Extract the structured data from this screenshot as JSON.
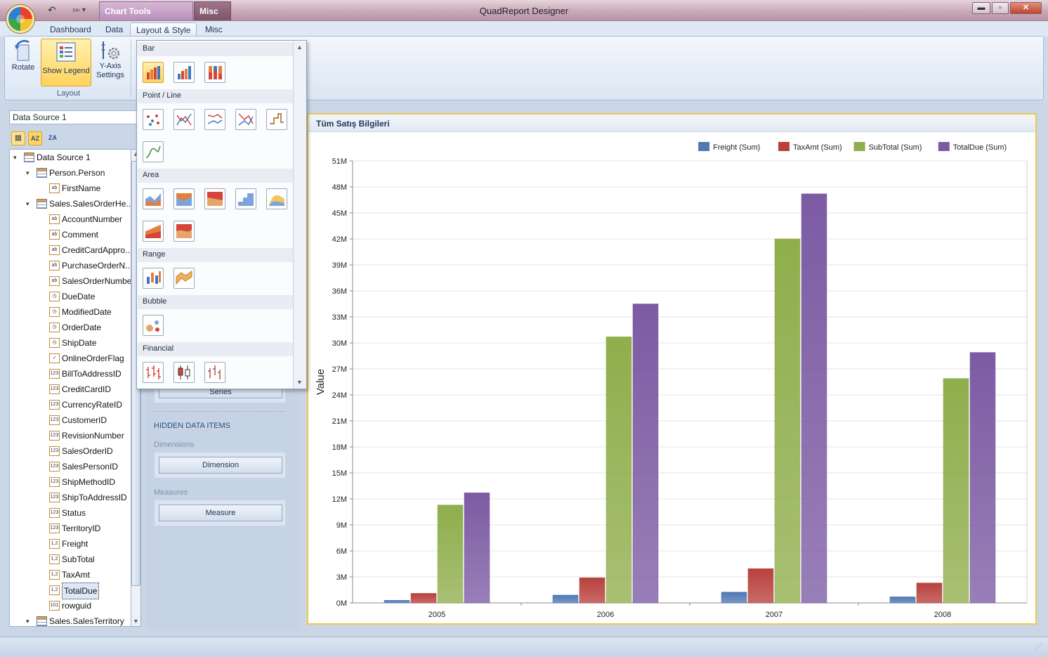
{
  "window": {
    "title": "QuadReport Designer",
    "context_tab_chart": "Chart Tools",
    "context_tab_misc": "Misc"
  },
  "ribbon": {
    "tabs": [
      "Dashboard",
      "Data",
      "Layout & Style",
      "Misc"
    ],
    "active_tab": "Layout & Style",
    "buttons": {
      "rotate": "Rotate",
      "show_legend": "Show Legend",
      "y_axis_line1": "Y-Axis",
      "y_axis_line2": "Settings"
    },
    "group_label": "Layout"
  },
  "data_source": {
    "combo_value": "Data Source 1",
    "tree": [
      {
        "label": "Data Source 1",
        "kind": "table",
        "level": 0,
        "expanded": true
      },
      {
        "label": "Person.Person",
        "kind": "table",
        "level": 1,
        "expanded": true
      },
      {
        "label": "FirstName",
        "kind": "text",
        "level": 2
      },
      {
        "label": "Sales.SalesOrderHe...",
        "kind": "table",
        "level": 1,
        "expanded": true
      },
      {
        "label": "AccountNumber",
        "kind": "text",
        "level": 2
      },
      {
        "label": "Comment",
        "kind": "text",
        "level": 2
      },
      {
        "label": "CreditCardAppro...",
        "kind": "text",
        "level": 2
      },
      {
        "label": "PurchaseOrderN...",
        "kind": "text",
        "level": 2
      },
      {
        "label": "SalesOrderNumber",
        "kind": "text",
        "level": 2
      },
      {
        "label": "DueDate",
        "kind": "date",
        "level": 2
      },
      {
        "label": "ModifiedDate",
        "kind": "date",
        "level": 2
      },
      {
        "label": "OrderDate",
        "kind": "date",
        "level": 2
      },
      {
        "label": "ShipDate",
        "kind": "date",
        "level": 2
      },
      {
        "label": "OnlineOrderFlag",
        "kind": "bool",
        "level": 2
      },
      {
        "label": "BillToAddressID",
        "kind": "int",
        "level": 2
      },
      {
        "label": "CreditCardID",
        "kind": "int",
        "level": 2
      },
      {
        "label": "CurrencyRateID",
        "kind": "int",
        "level": 2
      },
      {
        "label": "CustomerID",
        "kind": "int",
        "level": 2
      },
      {
        "label": "RevisionNumber",
        "kind": "int",
        "level": 2
      },
      {
        "label": "SalesOrderID",
        "kind": "int",
        "level": 2
      },
      {
        "label": "SalesPersonID",
        "kind": "int",
        "level": 2
      },
      {
        "label": "ShipMethodID",
        "kind": "int",
        "level": 2
      },
      {
        "label": "ShipToAddressID",
        "kind": "int",
        "level": 2
      },
      {
        "label": "Status",
        "kind": "int",
        "level": 2
      },
      {
        "label": "TerritoryID",
        "kind": "int",
        "level": 2
      },
      {
        "label": "Freight",
        "kind": "decimal",
        "level": 2
      },
      {
        "label": "SubTotal",
        "kind": "decimal",
        "level": 2
      },
      {
        "label": "TaxAmt",
        "kind": "decimal",
        "level": 2
      },
      {
        "label": "TotalDue",
        "kind": "decimal",
        "level": 2,
        "selected": true
      },
      {
        "label": "rowguid",
        "kind": "guid",
        "level": 2
      },
      {
        "label": "Sales.SalesTerritory",
        "kind": "table",
        "level": 1,
        "expanded": true
      }
    ]
  },
  "mid_panel": {
    "series_button": "Series",
    "hidden_heading": "HIDDEN DATA ITEMS",
    "dimensions_label": "Dimensions",
    "dimension_button": "Dimension",
    "measures_label": "Measures",
    "measure_button": "Measure"
  },
  "gallery": {
    "categories": [
      "Bar",
      "Point / Line",
      "Area",
      "Range",
      "Bubble",
      "Financial"
    ]
  },
  "chart_panel": {
    "title": "Tüm Satış Bilgileri"
  },
  "chart_data": {
    "type": "bar",
    "title": "",
    "xlabel": "",
    "ylabel": "Value",
    "categories": [
      "2005",
      "2006",
      "2007",
      "2008"
    ],
    "ylim": [
      0,
      51000000
    ],
    "yticks": [
      "0M",
      "3M",
      "6M",
      "9M",
      "12M",
      "15M",
      "18M",
      "21M",
      "24M",
      "27M",
      "30M",
      "33M",
      "36M",
      "39M",
      "42M",
      "45M",
      "48M",
      "51M"
    ],
    "legend_position": "top-right",
    "grid": true,
    "series": [
      {
        "name": "Freight (Sum)",
        "color": "#4f79b5",
        "values": [
          300000,
          900000,
          1250000,
          700000
        ]
      },
      {
        "name": "TaxAmt (Sum)",
        "color": "#b8413d",
        "values": [
          1100000,
          2900000,
          3950000,
          2300000
        ]
      },
      {
        "name": "SubTotal (Sum)",
        "color": "#8fae4c",
        "values": [
          11300000,
          30700000,
          42000000,
          25900000
        ]
      },
      {
        "name": "TotalDue (Sum)",
        "color": "#7c5ba3",
        "values": [
          12700000,
          34500000,
          47200000,
          28900000
        ]
      }
    ]
  }
}
